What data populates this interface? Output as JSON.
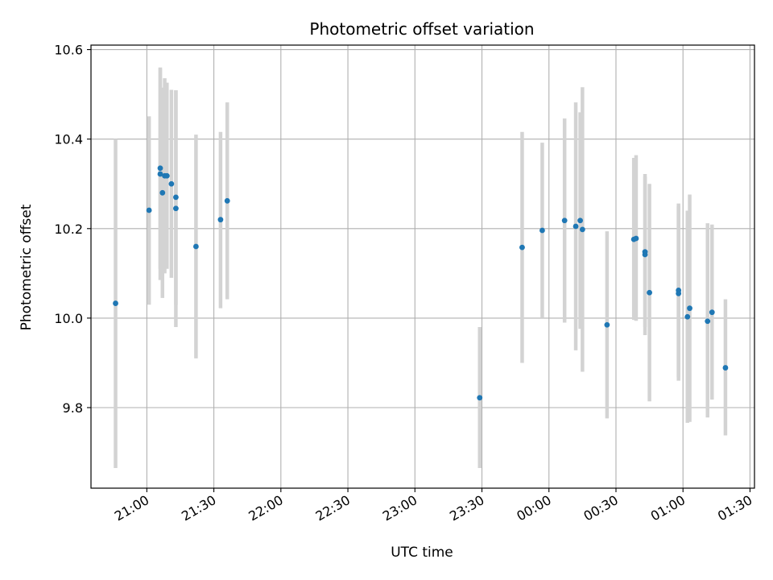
{
  "chart_data": {
    "type": "scatter",
    "title": "Photometric offset variation",
    "xlabel": "UTC time",
    "ylabel": "Photometric offset",
    "x_tick_labels": [
      "21:00",
      "21:30",
      "22:00",
      "22:30",
      "23:00",
      "23:30",
      "00:00",
      "00:30",
      "01:00",
      "01:30"
    ],
    "y_tick_labels": [
      "9.8",
      "10.0",
      "10.2",
      "10.4",
      "10.6"
    ],
    "x_axis_start": "20:35",
    "x_axis_end": "01:32",
    "ylim": [
      9.62,
      10.61
    ],
    "grid": true,
    "marker_color": "#1f77b4",
    "errorbar_color": "#d3d3d3",
    "series": [
      {
        "points": [
          {
            "x": "20:46",
            "y": 10.033,
            "lo": 9.665,
            "hi": 10.4
          },
          {
            "x": "21:01",
            "y": 10.241,
            "lo": 10.03,
            "hi": 10.451
          },
          {
            "x": "21:06",
            "y": 10.335,
            "lo": 10.11,
            "hi": 10.56
          },
          {
            "x": "21:06",
            "y": 10.322,
            "lo": 10.085,
            "hi": 10.558
          },
          {
            "x": "21:07",
            "y": 10.28,
            "lo": 10.045,
            "hi": 10.515
          },
          {
            "x": "21:08",
            "y": 10.318,
            "lo": 10.1,
            "hi": 10.536
          },
          {
            "x": "21:09",
            "y": 10.318,
            "lo": 10.11,
            "hi": 10.526
          },
          {
            "x": "21:11",
            "y": 10.3,
            "lo": 10.09,
            "hi": 10.51
          },
          {
            "x": "21:13",
            "y": 10.27,
            "lo": 10.03,
            "hi": 10.509
          },
          {
            "x": "21:13",
            "y": 10.245,
            "lo": 9.98,
            "hi": 10.509
          },
          {
            "x": "21:22",
            "y": 10.16,
            "lo": 9.91,
            "hi": 10.41
          },
          {
            "x": "21:33",
            "y": 10.22,
            "lo": 10.022,
            "hi": 10.416
          },
          {
            "x": "21:36",
            "y": 10.262,
            "lo": 10.042,
            "hi": 10.482
          },
          {
            "x": "23:29",
            "y": 9.822,
            "lo": 9.665,
            "hi": 9.98
          },
          {
            "x": "23:48",
            "y": 10.158,
            "lo": 9.9,
            "hi": 10.416
          },
          {
            "x": "23:57",
            "y": 10.196,
            "lo": 10.0,
            "hi": 10.392
          },
          {
            "x": "00:07",
            "y": 10.218,
            "lo": 9.99,
            "hi": 10.446
          },
          {
            "x": "00:12",
            "y": 10.205,
            "lo": 9.928,
            "hi": 10.482
          },
          {
            "x": "00:14",
            "y": 10.218,
            "lo": 9.976,
            "hi": 10.46
          },
          {
            "x": "00:15",
            "y": 10.198,
            "lo": 9.88,
            "hi": 10.516
          },
          {
            "x": "00:26",
            "y": 9.985,
            "lo": 9.776,
            "hi": 10.194
          },
          {
            "x": "00:38",
            "y": 10.176,
            "lo": 9.996,
            "hi": 10.358
          },
          {
            "x": "00:39",
            "y": 10.178,
            "lo": 9.994,
            "hi": 10.364
          },
          {
            "x": "00:43",
            "y": 10.142,
            "lo": 9.962,
            "hi": 10.322
          },
          {
            "x": "00:43",
            "y": 10.148,
            "lo": 9.98,
            "hi": 10.316
          },
          {
            "x": "00:45",
            "y": 10.057,
            "lo": 9.814,
            "hi": 10.3
          },
          {
            "x": "00:58",
            "y": 10.062,
            "lo": 9.868,
            "hi": 10.256
          },
          {
            "x": "00:58",
            "y": 10.055,
            "lo": 9.86,
            "hi": 10.25
          },
          {
            "x": "01:02",
            "y": 10.003,
            "lo": 9.766,
            "hi": 10.24
          },
          {
            "x": "01:03",
            "y": 10.022,
            "lo": 9.768,
            "hi": 10.276
          },
          {
            "x": "01:11",
            "y": 9.993,
            "lo": 9.778,
            "hi": 10.212
          },
          {
            "x": "01:13",
            "y": 10.013,
            "lo": 9.818,
            "hi": 10.209
          },
          {
            "x": "01:19",
            "y": 9.889,
            "lo": 9.738,
            "hi": 10.042
          }
        ]
      }
    ]
  }
}
